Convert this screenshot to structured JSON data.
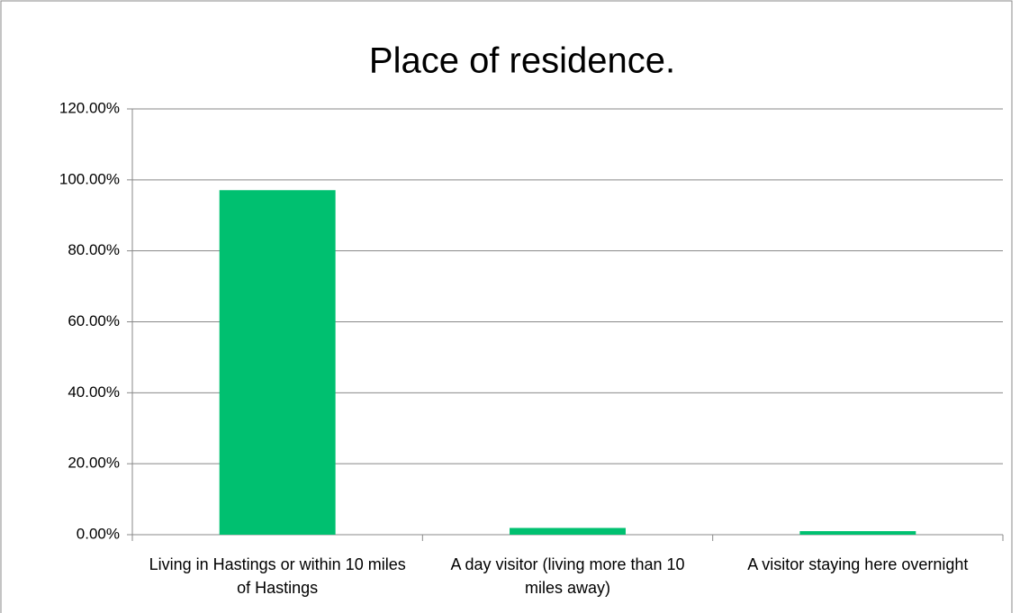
{
  "chart_data": {
    "type": "bar",
    "title": "Place of residence.",
    "categories": [
      "Living in Hastings or within 10 miles of Hastings",
      "A day visitor (living more than 10 miles away)",
      "A visitor staying here overnight"
    ],
    "values": [
      97.1,
      1.9,
      1.0
    ],
    "color": "#00c070",
    "ylim": [
      0,
      120
    ],
    "yticks": [
      {
        "value": 0,
        "label": "0.00%"
      },
      {
        "value": 20,
        "label": "20.00%"
      },
      {
        "value": 40,
        "label": "40.00%"
      },
      {
        "value": 60,
        "label": "60.00%"
      },
      {
        "value": 80,
        "label": "80.00%"
      },
      {
        "value": 100,
        "label": "100.00%"
      },
      {
        "value": 120,
        "label": "120.00%"
      }
    ],
    "grid": true
  }
}
